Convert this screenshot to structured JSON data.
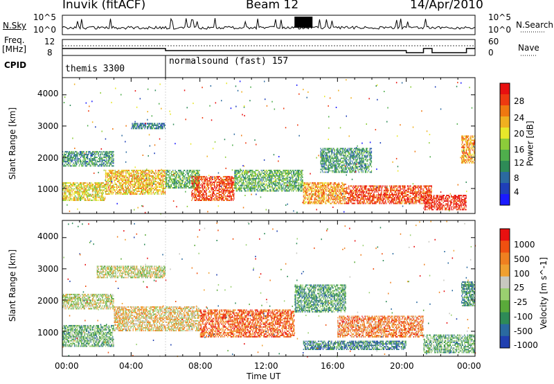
{
  "header": {
    "title": "Inuvik (fitACF)",
    "beam": "Beam 12",
    "date": "14/Apr/2010"
  },
  "panels": {
    "nsky": {
      "label": "N.Sky",
      "ticks_left": [
        "10^5",
        "10^0"
      ],
      "ticks_right": [
        "10^5",
        "10^0"
      ],
      "right_label": "N.Search"
    },
    "freq": {
      "label_line1": "Freq.",
      "label_line2": "[MHz]",
      "ticks_left": [
        "12",
        "8"
      ],
      "ticks_right": [
        "60",
        "0"
      ],
      "right_label": "Nave"
    },
    "cpid": {
      "label": "CPID",
      "modes": [
        "themis 3300",
        "normalsound (fast) 157"
      ],
      "change_hour": 6.0
    }
  },
  "chart_data": [
    {
      "type": "heatmap",
      "title": "",
      "xlabel": "Time UT",
      "ylabel": "Slant Range [km]",
      "xlim": [
        0,
        24
      ],
      "ylim": [
        200,
        4550
      ],
      "x_ticks": [
        "00:00",
        "04:00",
        "08:00",
        "12:00",
        "16:00",
        "20:00",
        "00:00"
      ],
      "y_ticks": [
        1000,
        2000,
        3000,
        4000
      ],
      "colorbar": {
        "label": "Power [dB]",
        "ticks": [
          4,
          8,
          12,
          16,
          20,
          24,
          28
        ],
        "range": [
          0,
          30
        ],
        "colors": [
          "#1a1aff",
          "#1f3fb8",
          "#2b6aa0",
          "#2e8b57",
          "#4fae4c",
          "#8ccc3a",
          "#e8e82a",
          "#f0b020",
          "#f07810",
          "#ee3a10",
          "#e81010"
        ]
      },
      "echo_regions": [
        {
          "t": [
            0.0,
            2.5
          ],
          "r": [
            600,
            1200
          ],
          "value": 18
        },
        {
          "t": [
            2.5,
            6.0
          ],
          "r": [
            800,
            1600
          ],
          "value": 20
        },
        {
          "t": [
            0.0,
            3.0
          ],
          "r": [
            1700,
            2200
          ],
          "value": 10
        },
        {
          "t": [
            4.0,
            6.0
          ],
          "r": [
            2900,
            3100
          ],
          "value": 8
        },
        {
          "t": [
            6.0,
            8.0
          ],
          "r": [
            1000,
            1600
          ],
          "value": 12
        },
        {
          "t": [
            7.5,
            10.0
          ],
          "r": [
            600,
            1400
          ],
          "value": 26
        },
        {
          "t": [
            10.0,
            14.0
          ],
          "r": [
            900,
            1600
          ],
          "value": 12
        },
        {
          "t": [
            14.0,
            16.5
          ],
          "r": [
            500,
            1200
          ],
          "value": 22
        },
        {
          "t": [
            16.5,
            21.5
          ],
          "r": [
            500,
            1100
          ],
          "value": 26
        },
        {
          "t": [
            21.0,
            23.5
          ],
          "r": [
            300,
            800
          ],
          "value": 28
        },
        {
          "t": [
            15.0,
            18.0
          ],
          "r": [
            1500,
            2300
          ],
          "value": 10
        },
        {
          "t": [
            23.2,
            24.0
          ],
          "r": [
            1800,
            2700
          ],
          "value": 22
        }
      ]
    },
    {
      "type": "heatmap",
      "title": "",
      "xlabel": "Time UT",
      "ylabel": "Slant Range [km]",
      "xlim": [
        0,
        24
      ],
      "ylim": [
        200,
        4550
      ],
      "x_ticks": [
        "00:00",
        "04:00",
        "08:00",
        "12:00",
        "16:00",
        "20:00",
        "00:00"
      ],
      "y_ticks": [
        1000,
        2000,
        3000,
        4000
      ],
      "colorbar": {
        "label": "Velocity [m s^-1]",
        "ticks": [
          "1000",
          "500",
          "100",
          "25",
          "-25",
          "-100",
          "-500",
          "-1000"
        ],
        "range": [
          -1000,
          1000
        ],
        "colors": [
          "#2040b0",
          "#2a6aa0",
          "#2e8b57",
          "#5aaa3a",
          "#9ad070",
          "#c8c8c0",
          "#f0a030",
          "#f08020",
          "#f05010",
          "#e81010"
        ]
      },
      "echo_regions": [
        {
          "t": [
            0.0,
            3.0
          ],
          "r": [
            500,
            1200
          ],
          "value": -300
        },
        {
          "t": [
            0.0,
            3.0
          ],
          "r": [
            1700,
            2200
          ],
          "value": 0
        },
        {
          "t": [
            2.0,
            6.0
          ],
          "r": [
            2700,
            3100
          ],
          "value": 0
        },
        {
          "t": [
            3.0,
            8.0
          ],
          "r": [
            1000,
            1800
          ],
          "value": 200
        },
        {
          "t": [
            8.0,
            13.5
          ],
          "r": [
            800,
            1700
          ],
          "value": 600
        },
        {
          "t": [
            13.5,
            16.5
          ],
          "r": [
            1600,
            2500
          ],
          "value": -400
        },
        {
          "t": [
            14.0,
            20.0
          ],
          "r": [
            400,
            700
          ],
          "value": -600
        },
        {
          "t": [
            16.0,
            21.0
          ],
          "r": [
            800,
            1500
          ],
          "value": 500
        },
        {
          "t": [
            21.0,
            24.0
          ],
          "r": [
            300,
            900
          ],
          "value": -300
        },
        {
          "t": [
            23.2,
            24.0
          ],
          "r": [
            1800,
            2600
          ],
          "value": -500
        }
      ]
    }
  ]
}
